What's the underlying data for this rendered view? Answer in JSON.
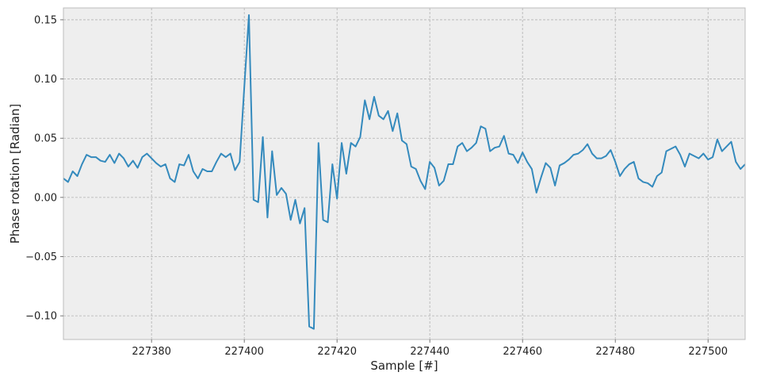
{
  "chart_data": {
    "type": "line",
    "xlabel": "Sample [#]",
    "ylabel": "Phase rotation [Radian]",
    "xlim": [
      227361,
      227508
    ],
    "ylim": [
      -0.12,
      0.16
    ],
    "grid": true,
    "xticks": [
      227380,
      227400,
      227420,
      227440,
      227460,
      227480,
      227500
    ],
    "xtick_labels": [
      "227380",
      "227400",
      "227420",
      "227440",
      "227460",
      "227480",
      "227500"
    ],
    "yticks": [
      -0.1,
      -0.05,
      0.0,
      0.05,
      0.1,
      0.15
    ],
    "ytick_labels": [
      "−0.10",
      "−0.05",
      "0.00",
      "0.05",
      "0.10",
      "0.15"
    ],
    "colors": {
      "line": "#348abd",
      "plot_bg": "#eeeeee",
      "grid": "#b2b2b2",
      "frame": "#bcbcbc"
    },
    "series": [
      {
        "x": [
          227361,
          227362,
          227363,
          227364,
          227365,
          227366,
          227367,
          227368,
          227369,
          227370,
          227371,
          227372,
          227373,
          227374,
          227375,
          227376,
          227377,
          227378,
          227379,
          227380,
          227381,
          227382,
          227383,
          227384,
          227385,
          227386,
          227387,
          227388,
          227389,
          227390,
          227391,
          227392,
          227393,
          227394,
          227395,
          227396,
          227397,
          227398,
          227399,
          227400,
          227401,
          227402,
          227403,
          227404,
          227405,
          227406,
          227407,
          227408,
          227409,
          227410,
          227411,
          227412,
          227413,
          227414,
          227415,
          227416,
          227417,
          227418,
          227419,
          227420,
          227421,
          227422,
          227423,
          227424,
          227425,
          227426,
          227427,
          227428,
          227429,
          227430,
          227431,
          227432,
          227433,
          227434,
          227435,
          227436,
          227437,
          227438,
          227439,
          227440,
          227441,
          227442,
          227443,
          227444,
          227445,
          227446,
          227447,
          227448,
          227449,
          227450,
          227451,
          227452,
          227453,
          227454,
          227455,
          227456,
          227457,
          227458,
          227459,
          227460,
          227461,
          227462,
          227463,
          227464,
          227465,
          227466,
          227467,
          227468,
          227469,
          227470,
          227471,
          227472,
          227473,
          227474,
          227475,
          227476,
          227477,
          227478,
          227479,
          227480,
          227481,
          227482,
          227483,
          227484,
          227485,
          227486,
          227487,
          227488,
          227489,
          227490,
          227491,
          227492,
          227493,
          227494,
          227495,
          227496,
          227497,
          227498,
          227499,
          227500,
          227501,
          227502,
          227503,
          227504,
          227505,
          227506,
          227507,
          227508
        ],
        "values": [
          0.016,
          0.013,
          0.022,
          0.018,
          0.028,
          0.036,
          0.034,
          0.034,
          0.031,
          0.03,
          0.036,
          0.029,
          0.037,
          0.033,
          0.026,
          0.031,
          0.025,
          0.034,
          0.037,
          0.033,
          0.029,
          0.026,
          0.028,
          0.016,
          0.013,
          0.028,
          0.027,
          0.036,
          0.022,
          0.016,
          0.024,
          0.022,
          0.022,
          0.03,
          0.037,
          0.034,
          0.037,
          0.023,
          0.03,
          0.093,
          0.154,
          -0.002,
          -0.004,
          0.051,
          -0.017,
          0.039,
          0.002,
          0.008,
          0.003,
          -0.019,
          -0.002,
          -0.022,
          -0.009,
          -0.109,
          -0.111,
          0.046,
          -0.019,
          -0.021,
          0.028,
          -0.001,
          0.046,
          0.02,
          0.046,
          0.043,
          0.051,
          0.082,
          0.066,
          0.085,
          0.069,
          0.066,
          0.073,
          0.056,
          0.071,
          0.048,
          0.045,
          0.026,
          0.024,
          0.014,
          0.007,
          0.03,
          0.025,
          0.01,
          0.014,
          0.028,
          0.028,
          0.043,
          0.046,
          0.039,
          0.042,
          0.046,
          0.06,
          0.058,
          0.039,
          0.042,
          0.043,
          0.052,
          0.037,
          0.036,
          0.029,
          0.038,
          0.03,
          0.024,
          0.004,
          0.017,
          0.029,
          0.025,
          0.01,
          0.027,
          0.029,
          0.032,
          0.036,
          0.037,
          0.04,
          0.045,
          0.037,
          0.033,
          0.033,
          0.035,
          0.04,
          0.03,
          0.018,
          0.024,
          0.028,
          0.03,
          0.016,
          0.013,
          0.012,
          0.009,
          0.018,
          0.021,
          0.039,
          0.041,
          0.043,
          0.036,
          0.026,
          0.037,
          0.035,
          0.033,
          0.037,
          0.032,
          0.034,
          0.049,
          0.039,
          0.043,
          0.047,
          0.03,
          0.024,
          0.028
        ]
      }
    ]
  }
}
